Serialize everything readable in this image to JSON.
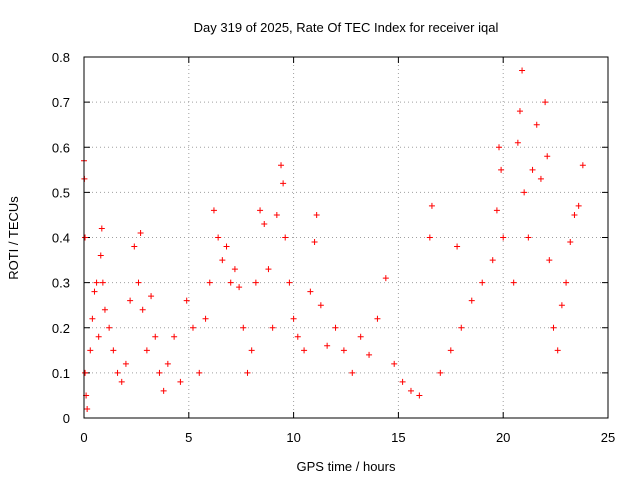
{
  "chart_data": {
    "type": "scatter",
    "title": "Day 319 of 2025, Rate Of TEC Index for receiver iqal",
    "xlabel": "GPS time / hours",
    "ylabel": "ROTI / TECUs",
    "xlim": [
      0,
      25
    ],
    "ylim": [
      0,
      0.8
    ],
    "x_ticks": [
      0,
      5,
      10,
      15,
      20,
      25
    ],
    "x_tick_labels": [
      "0",
      "5",
      "10",
      "15",
      "20",
      "25"
    ],
    "y_ticks": [
      0,
      0.1,
      0.2,
      0.3,
      0.4,
      0.5,
      0.6,
      0.7,
      0.8
    ],
    "y_tick_labels": [
      "0",
      "0.1",
      "0.2",
      "0.3",
      "0.4",
      "0.5",
      "0.6",
      "0.7",
      "0.8"
    ],
    "grid": true,
    "marker": "plus",
    "color": "#ff0000",
    "series": [
      {
        "points": [
          [
            0.0,
            0.57
          ],
          [
            0.02,
            0.53
          ],
          [
            0.05,
            0.4
          ],
          [
            0.05,
            0.1
          ],
          [
            0.1,
            0.05
          ],
          [
            0.15,
            0.02
          ],
          [
            0.3,
            0.15
          ],
          [
            0.4,
            0.22
          ],
          [
            0.5,
            0.28
          ],
          [
            0.6,
            0.3
          ],
          [
            0.7,
            0.18
          ],
          [
            0.8,
            0.36
          ],
          [
            0.85,
            0.42
          ],
          [
            0.9,
            0.3
          ],
          [
            1.0,
            0.24
          ],
          [
            1.2,
            0.2
          ],
          [
            1.4,
            0.15
          ],
          [
            1.6,
            0.1
          ],
          [
            1.8,
            0.08
          ],
          [
            2.0,
            0.12
          ],
          [
            2.2,
            0.26
          ],
          [
            2.4,
            0.38
          ],
          [
            2.6,
            0.3
          ],
          [
            2.7,
            0.41
          ],
          [
            2.8,
            0.24
          ],
          [
            3.0,
            0.15
          ],
          [
            3.2,
            0.27
          ],
          [
            3.4,
            0.18
          ],
          [
            3.6,
            0.1
          ],
          [
            3.8,
            0.06
          ],
          [
            4.0,
            0.12
          ],
          [
            4.3,
            0.18
          ],
          [
            4.6,
            0.08
          ],
          [
            4.9,
            0.26
          ],
          [
            5.2,
            0.2
          ],
          [
            5.5,
            0.1
          ],
          [
            5.8,
            0.22
          ],
          [
            6.0,
            0.3
          ],
          [
            6.2,
            0.46
          ],
          [
            6.4,
            0.4
          ],
          [
            6.6,
            0.35
          ],
          [
            6.8,
            0.38
          ],
          [
            7.0,
            0.3
          ],
          [
            7.2,
            0.33
          ],
          [
            7.4,
            0.29
          ],
          [
            7.6,
            0.2
          ],
          [
            7.8,
            0.1
          ],
          [
            8.0,
            0.15
          ],
          [
            8.2,
            0.3
          ],
          [
            8.4,
            0.46
          ],
          [
            8.6,
            0.43
          ],
          [
            8.8,
            0.33
          ],
          [
            9.0,
            0.2
          ],
          [
            9.2,
            0.45
          ],
          [
            9.4,
            0.56
          ],
          [
            9.5,
            0.52
          ],
          [
            9.6,
            0.4
          ],
          [
            9.8,
            0.3
          ],
          [
            10.0,
            0.22
          ],
          [
            10.2,
            0.18
          ],
          [
            10.5,
            0.15
          ],
          [
            10.8,
            0.28
          ],
          [
            11.0,
            0.39
          ],
          [
            11.1,
            0.45
          ],
          [
            11.3,
            0.25
          ],
          [
            11.6,
            0.16
          ],
          [
            12.0,
            0.2
          ],
          [
            12.4,
            0.15
          ],
          [
            12.8,
            0.1
          ],
          [
            13.2,
            0.18
          ],
          [
            13.6,
            0.14
          ],
          [
            14.0,
            0.22
          ],
          [
            14.4,
            0.31
          ],
          [
            14.8,
            0.12
          ],
          [
            15.2,
            0.08
          ],
          [
            15.6,
            0.06
          ],
          [
            16.0,
            0.05
          ],
          [
            16.5,
            0.4
          ],
          [
            16.6,
            0.47
          ],
          [
            17.0,
            0.1
          ],
          [
            17.5,
            0.15
          ],
          [
            17.8,
            0.38
          ],
          [
            18.0,
            0.2
          ],
          [
            18.5,
            0.26
          ],
          [
            19.0,
            0.3
          ],
          [
            19.5,
            0.35
          ],
          [
            19.7,
            0.46
          ],
          [
            19.8,
            0.6
          ],
          [
            19.9,
            0.55
          ],
          [
            20.0,
            0.4
          ],
          [
            20.5,
            0.3
          ],
          [
            20.7,
            0.61
          ],
          [
            20.8,
            0.68
          ],
          [
            20.9,
            0.77
          ],
          [
            21.0,
            0.5
          ],
          [
            21.2,
            0.4
          ],
          [
            21.4,
            0.55
          ],
          [
            21.6,
            0.65
          ],
          [
            21.8,
            0.53
          ],
          [
            22.0,
            0.7
          ],
          [
            22.1,
            0.58
          ],
          [
            22.2,
            0.35
          ],
          [
            22.4,
            0.2
          ],
          [
            22.6,
            0.15
          ],
          [
            22.8,
            0.25
          ],
          [
            23.0,
            0.3
          ],
          [
            23.2,
            0.39
          ],
          [
            23.4,
            0.45
          ],
          [
            23.6,
            0.47
          ],
          [
            23.8,
            0.56
          ]
        ]
      }
    ]
  }
}
